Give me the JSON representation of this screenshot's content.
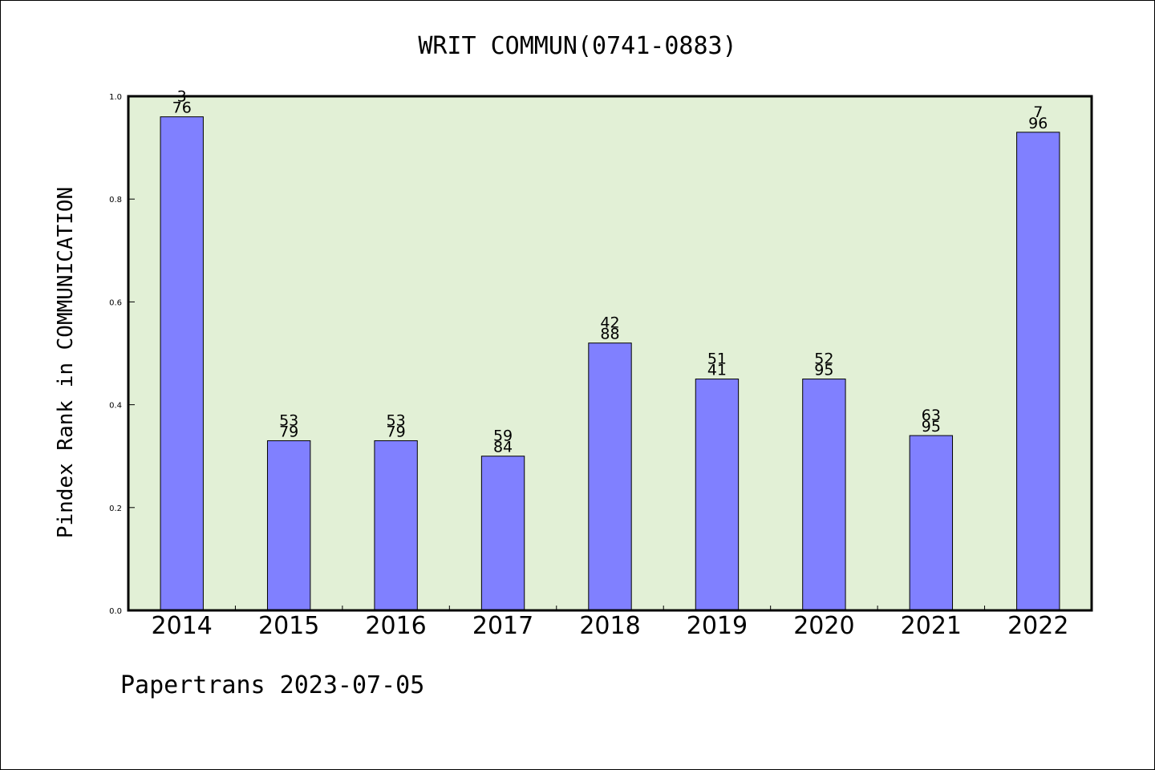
{
  "chart_data": {
    "type": "bar",
    "title": "WRIT COMMUN(0741-0883)",
    "ylabel": "Pindex Rank in COMMUNICATION",
    "xlabel": "",
    "ylim": [
      0,
      1.0
    ],
    "yticks": [
      "0.0",
      "0.2",
      "0.4",
      "0.6",
      "0.8",
      "1.0"
    ],
    "categories": [
      "2014",
      "2015",
      "2016",
      "2017",
      "2018",
      "2019",
      "2020",
      "2021",
      "2022"
    ],
    "values": [
      0.96,
      0.33,
      0.33,
      0.3,
      0.52,
      0.45,
      0.45,
      0.34,
      0.93
    ],
    "rank_labels": [
      "3",
      "53",
      "53",
      "59",
      "42",
      "51",
      "52",
      "63",
      "7"
    ],
    "total_labels": [
      "76",
      "79",
      "79",
      "84",
      "88",
      "41",
      "95",
      "95",
      "96"
    ],
    "grid": false,
    "bar_color": "#8080ff",
    "plot_background": "#e2f0d6"
  },
  "footer": "Papertrans 2023-07-05"
}
